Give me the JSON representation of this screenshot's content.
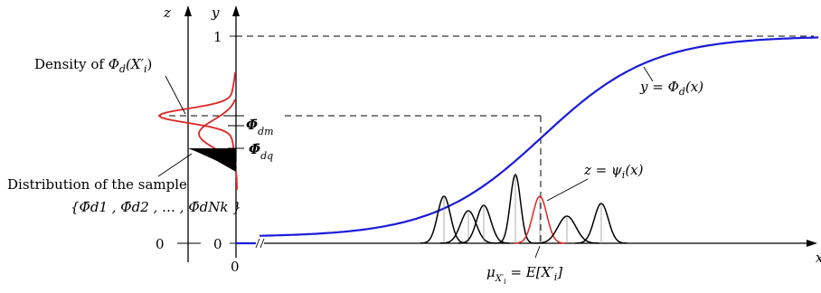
{
  "labels": {
    "density_text": "Density of ",
    "density_sym": "Φ",
    "density_sub": "d",
    "density_arg": "(X′",
    "density_arg_sub": "i",
    "density_arg_close": ")",
    "distribution_line1": "Distribution of the sample",
    "distribution_set": "{Φ̄d1 , Φ̄d2 , … , Φ̄dNk }",
    "phi_dm": "Φ̄",
    "phi_dm_sub": "dm",
    "phi_dq": "Φ̄",
    "phi_dq_sub": "dq",
    "curve_label": "y = Φ",
    "curve_label_sub": "d",
    "curve_label_tail": "(x)",
    "psi_label": "z = ψ",
    "psi_label_sub": "i",
    "psi_label_tail": "(x)",
    "mu_label": "μ",
    "mu_sub": "X′",
    "mu_sub2": "i",
    "mu_tail": " = E[X′",
    "mu_tail_sub": "i",
    "mu_tail_close": "]",
    "axis_z": "z",
    "axis_y": "y",
    "tick_one": "1",
    "tick_zero_y": "0",
    "tick_zero_z": "0",
    "origin_zero": "0",
    "axis_x": "x"
  },
  "colors": {
    "cdf": "#1a1adb",
    "density": "#e02424",
    "kernel": "#000000",
    "psi": "#e02424"
  }
}
